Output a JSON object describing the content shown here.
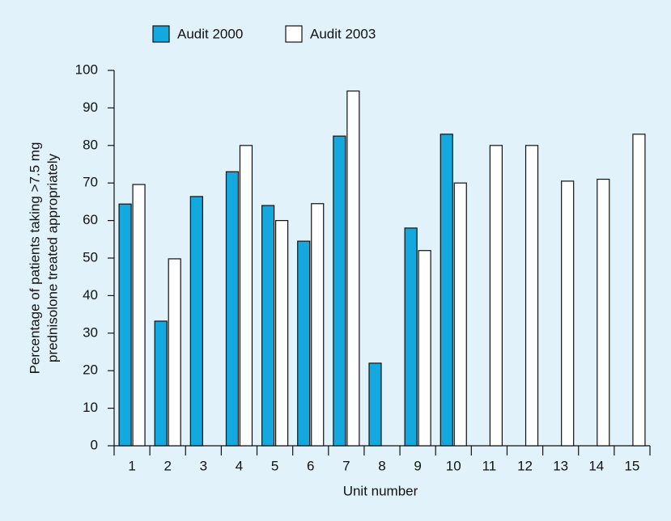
{
  "chart_data": {
    "type": "bar",
    "xlabel": "Unit number",
    "ylabel": [
      "Percentage of patients taking >7.5 mg",
      "prednisolone treated appropriately"
    ],
    "categories": [
      "1",
      "2",
      "3",
      "4",
      "5",
      "6",
      "7",
      "8",
      "9",
      "10",
      "11",
      "12",
      "13",
      "14",
      "15"
    ],
    "series": [
      {
        "name": "Audit 2000",
        "color": "#14a9de",
        "values": [
          64.4,
          33.2,
          66.4,
          73,
          64,
          54.5,
          82.5,
          22,
          58,
          83,
          null,
          null,
          null,
          null,
          null
        ]
      },
      {
        "name": "Audit 2003",
        "color": "#ffffff",
        "values": [
          69.6,
          49.8,
          null,
          80,
          60,
          64.5,
          94.5,
          null,
          52,
          70,
          80,
          80,
          70.5,
          71,
          83
        ]
      }
    ],
    "ylim": [
      0,
      100
    ],
    "yticks": [
      0,
      10,
      20,
      30,
      40,
      50,
      60,
      70,
      80,
      90,
      100
    ],
    "legend": "top"
  }
}
